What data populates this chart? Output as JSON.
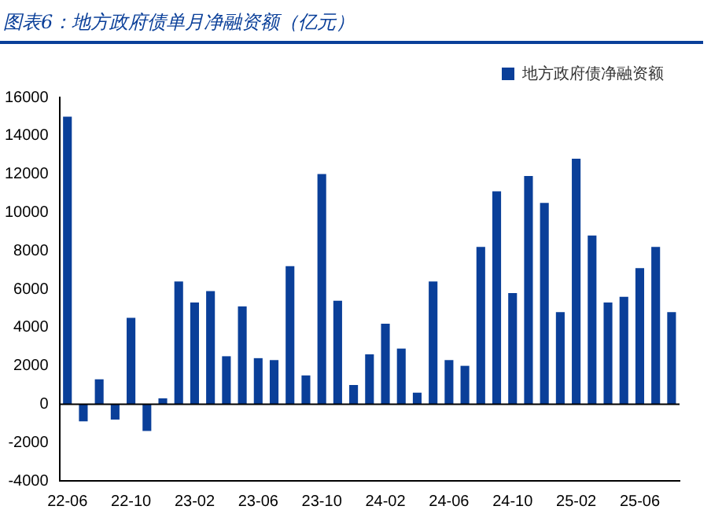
{
  "chart_data": {
    "type": "bar",
    "title": "图表6：地方政府债单月净融资额（亿元）",
    "categories": [
      "22-06",
      null,
      null,
      null,
      "22-10",
      null,
      null,
      null,
      "23-02",
      null,
      null,
      null,
      "23-06",
      null,
      null,
      null,
      "23-10",
      null,
      null,
      null,
      "24-02",
      null,
      null,
      null,
      "24-06",
      null,
      null,
      null,
      "24-10",
      null,
      null,
      null,
      "25-02",
      null,
      null,
      null,
      "25-06",
      null,
      null
    ],
    "series": [
      {
        "name": "地方政府债净融资额",
        "color": "#0a3f99",
        "values": [
          15000,
          -900,
          1300,
          -800,
          4500,
          -1400,
          300,
          6400,
          5300,
          5900,
          2500,
          5100,
          2400,
          2300,
          7200,
          1500,
          12000,
          5400,
          1000,
          2600,
          4200,
          2900,
          600,
          6400,
          2300,
          2000,
          8200,
          11100,
          5800,
          11900,
          10500,
          4800,
          12800,
          8800,
          5300,
          5600,
          7100,
          8200,
          4800
        ]
      }
    ],
    "ref_lines": [
      {
        "axis": "y",
        "value": 0,
        "color": "#000000"
      }
    ],
    "ylim": [
      -4000,
      16000
    ],
    "yticks": [
      -4000,
      -2000,
      0,
      2000,
      4000,
      6000,
      8000,
      10000,
      12000,
      14000,
      16000
    ],
    "grid": false,
    "legend": "top"
  }
}
